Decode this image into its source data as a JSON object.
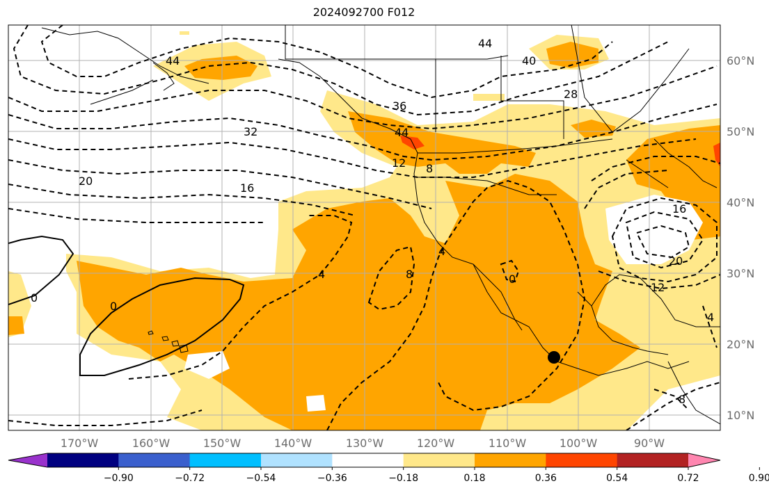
{
  "title": "2024092700 F012",
  "lon_labels": [
    "170°W",
    "160°W",
    "150°W",
    "140°W",
    "130°W",
    "120°W",
    "110°W",
    "100°W",
    "90°W"
  ],
  "lat_labels": [
    "60°N",
    "50°N",
    "40°N",
    "30°N",
    "20°N",
    "10°N"
  ],
  "colorbar": {
    "tick_labels": [
      "−0.90",
      "−0.72",
      "−0.54",
      "−0.36",
      "−0.18",
      "0.18",
      "0.36",
      "0.54",
      "0.72",
      "0.90"
    ],
    "colors": [
      "#9932cc",
      "#000080",
      "#3a5fcd",
      "#00bfff",
      "#b0e2ff",
      "#ffffff",
      "#ffe88a",
      "#ffa500",
      "#ff4500",
      "#b22222",
      "#ff86b0"
    ]
  },
  "contour_labels": [
    "44",
    "40",
    "44",
    "36",
    "28",
    "32",
    "20",
    "16",
    "12",
    "8",
    "44",
    "0",
    "0",
    "4",
    "8",
    "4",
    "0",
    "16",
    "20",
    "12",
    "4",
    "8"
  ],
  "marker": "storm-center"
}
